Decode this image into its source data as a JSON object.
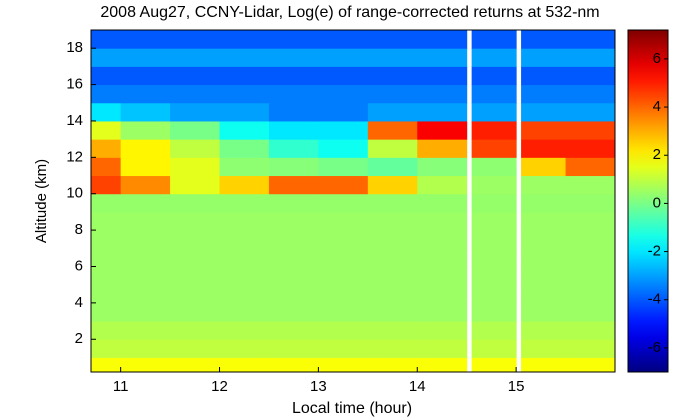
{
  "chart_data": {
    "type": "heatmap",
    "title": "2008 Aug27, CCNY-Lidar, Log(e) of range-corrected returns at 532-nm",
    "x_label": "Local time (hour)",
    "y_label": "Altitude (km)",
    "x_edges": [
      10.7,
      11.0,
      11.5,
      12.0,
      12.5,
      13.0,
      13.5,
      14.0,
      14.5,
      14.55,
      15.0,
      15.05,
      15.5,
      16.0
    ],
    "y_edges": [
      0.2,
      1,
      2,
      3,
      4,
      5,
      6,
      7,
      8,
      9,
      10,
      11,
      12,
      13,
      14,
      15,
      16,
      17,
      18,
      19
    ],
    "z": [
      [
        1.8,
        1.8,
        1.8,
        1.8,
        1.8,
        1.8,
        1.8,
        1.8,
        null,
        1.8,
        null,
        1.8,
        1.8
      ],
      [
        1.0,
        1.0,
        1.0,
        1.0,
        1.0,
        1.0,
        1.0,
        1.0,
        null,
        1.0,
        null,
        1.0,
        1.0
      ],
      [
        0.8,
        0.8,
        0.8,
        0.8,
        0.8,
        0.8,
        0.8,
        0.8,
        null,
        0.8,
        null,
        0.8,
        0.8
      ],
      [
        0.5,
        0.5,
        0.5,
        0.5,
        0.5,
        0.5,
        0.5,
        0.5,
        null,
        0.5,
        null,
        0.5,
        0.5
      ],
      [
        0.5,
        0.5,
        0.5,
        0.5,
        0.5,
        0.5,
        0.5,
        0.5,
        null,
        0.5,
        null,
        0.5,
        0.5
      ],
      [
        0.5,
        0.5,
        0.5,
        0.5,
        0.5,
        0.5,
        0.5,
        0.5,
        null,
        0.5,
        null,
        0.5,
        0.5
      ],
      [
        0.5,
        0.5,
        0.5,
        0.5,
        0.5,
        0.5,
        0.5,
        0.5,
        null,
        0.5,
        null,
        0.5,
        0.5
      ],
      [
        0.5,
        0.5,
        0.5,
        0.5,
        0.5,
        0.5,
        0.5,
        0.5,
        null,
        0.5,
        null,
        0.5,
        0.5
      ],
      [
        0.5,
        0.5,
        0.5,
        0.5,
        0.5,
        0.5,
        0.5,
        0.5,
        null,
        0.5,
        null,
        0.5,
        0.5
      ],
      [
        0.4,
        0.4,
        0.4,
        0.4,
        0.4,
        0.4,
        0.4,
        0.4,
        null,
        0.4,
        null,
        0.4,
        0.4
      ],
      [
        4.5,
        3.5,
        1.5,
        2.5,
        4,
        4,
        2.5,
        0.8,
        null,
        0.5,
        null,
        0.5,
        0.5
      ],
      [
        4,
        2,
        1.5,
        0.3,
        0.2,
        0,
        -0.3,
        0.2,
        null,
        0.3,
        null,
        2.5,
        4
      ],
      [
        3,
        2,
        1,
        0,
        -1,
        -1.5,
        1,
        3,
        null,
        4.5,
        null,
        5,
        5
      ],
      [
        1.5,
        0.5,
        0,
        -1.5,
        -2,
        -2,
        4,
        5.5,
        null,
        5,
        null,
        4.5,
        4.5
      ],
      [
        -2,
        -2.5,
        -3,
        -3,
        -3.5,
        -3.5,
        -3,
        -3,
        null,
        -3,
        null,
        -3,
        -3
      ],
      [
        -3.5,
        -3.5,
        -3.5,
        -3.5,
        -3.5,
        -3.5,
        -3.5,
        -3.5,
        null,
        -3.5,
        null,
        -3.5,
        -3.5
      ],
      [
        -4,
        -4,
        -4,
        -4,
        -4,
        -4,
        -4,
        -4,
        null,
        -4,
        null,
        -4,
        -4
      ],
      [
        -3,
        -3,
        -3,
        -3,
        -3,
        -3,
        -3,
        -3,
        null,
        -3,
        null,
        -3,
        -3
      ],
      [
        -4,
        -4,
        -4,
        -4,
        -4,
        -4,
        -4,
        -4,
        null,
        -4,
        null,
        -4,
        -4
      ]
    ],
    "colormap": "jet",
    "xlim": [
      10.7,
      16.0
    ],
    "ylim": [
      0.2,
      19
    ],
    "zlim": [
      -7,
      7.2
    ],
    "xticks": [
      11,
      12,
      13,
      14,
      15
    ],
    "yticks": [
      2,
      4,
      6,
      8,
      10,
      12,
      14,
      16,
      18
    ],
    "zticks": [
      -6,
      -4,
      -2,
      0,
      2,
      4,
      6
    ]
  }
}
